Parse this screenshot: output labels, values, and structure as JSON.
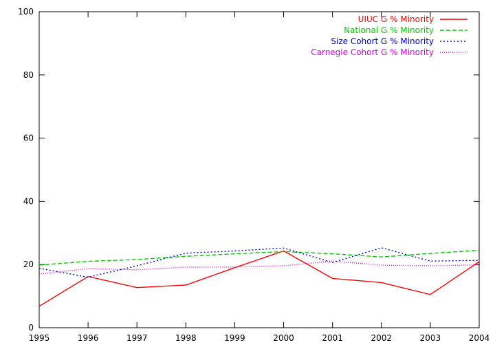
{
  "chart_data": {
    "type": "line",
    "title": "",
    "xlabel": "",
    "ylabel": "",
    "categories": [
      "1995",
      "1996",
      "1997",
      "1998",
      "1999",
      "2000",
      "2001",
      "2002",
      "2003",
      "2004"
    ],
    "x": [
      1995,
      1996,
      1997,
      1998,
      1999,
      2000,
      2001,
      2002,
      2003,
      2004
    ],
    "xlim": [
      1995,
      2004
    ],
    "ylim": [
      0,
      100
    ],
    "yticks": [
      0,
      20,
      40,
      60,
      80,
      100
    ],
    "grid": false,
    "legend_position": "top-right",
    "series": [
      {
        "name": "UIUC G % Minority",
        "color": "#ff0000",
        "dash": "solid",
        "values": [
          6.8,
          16.2,
          12.7,
          13.5,
          19.0,
          24.3,
          15.6,
          14.3,
          10.5,
          20.9
        ]
      },
      {
        "name": "National G % Minority",
        "color": "#00cc00",
        "dash": "dashed",
        "values": [
          19.8,
          21.0,
          21.6,
          22.6,
          23.4,
          24.1,
          23.4,
          22.4,
          23.5,
          24.5
        ]
      },
      {
        "name": "Size Cohort G % Minority",
        "color": "#0000cc",
        "dash": "dotted",
        "values": [
          18.8,
          16.0,
          19.6,
          23.6,
          24.3,
          25.2,
          20.6,
          25.3,
          21.1,
          21.3
        ]
      },
      {
        "name": "Carnegie Cohort G % Minority",
        "color": "#dd00dd",
        "dash": "fine-dotted",
        "values": [
          17.0,
          18.7,
          18.3,
          19.2,
          19.2,
          19.6,
          21.1,
          19.8,
          19.6,
          19.9
        ]
      }
    ]
  }
}
